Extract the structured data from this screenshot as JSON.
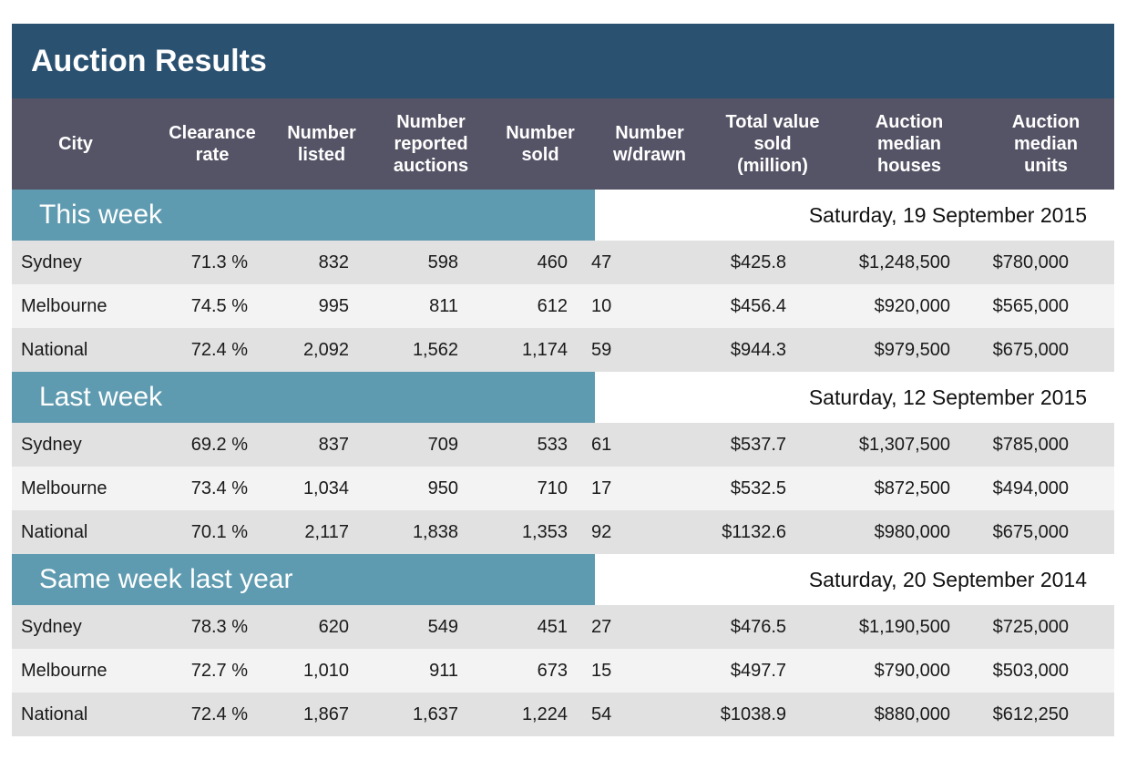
{
  "title": "Auction Results",
  "headers": [
    "City",
    "Clearance\nrate",
    "Number\nlisted",
    "Number\nreported\nauctions",
    "Number\nsold",
    "Number\nw/drawn",
    "Total value\nsold\n(million)",
    "Auction\nmedian\nhouses",
    "Auction\nmedian\nunits"
  ],
  "sections": [
    {
      "label": "This week",
      "date": "Saturday, 19 September 2015",
      "rows": [
        [
          "Sydney",
          "71.3 %",
          "832",
          "598",
          "460",
          "47",
          "$425.8",
          "$1,248,500",
          "$780,000"
        ],
        [
          "Melbourne",
          "74.5 %",
          "995",
          "811",
          "612",
          "10",
          "$456.4",
          "$920,000",
          "$565,000"
        ],
        [
          "National",
          "72.4 %",
          "2,092",
          "1,562",
          "1,174",
          "59",
          "$944.3",
          "$979,500",
          "$675,000"
        ]
      ]
    },
    {
      "label": "Last week",
      "date": "Saturday, 12 September 2015",
      "rows": [
        [
          "Sydney",
          "69.2 %",
          "837",
          "709",
          "533",
          "61",
          "$537.7",
          "$1,307,500",
          "$785,000"
        ],
        [
          "Melbourne",
          "73.4 %",
          "1,034",
          "950",
          "710",
          "17",
          "$532.5",
          "$872,500",
          "$494,000"
        ],
        [
          "National",
          "70.1 %",
          "2,117",
          "1,838",
          "1,353",
          "92",
          "$1132.6",
          "$980,000",
          "$675,000"
        ]
      ]
    },
    {
      "label": "Same week last year",
      "date": "Saturday, 20 September 2014",
      "rows": [
        [
          "Sydney",
          "78.3 %",
          "620",
          "549",
          "451",
          "27",
          "$476.5",
          "$1,190,500",
          "$725,000"
        ],
        [
          "Melbourne",
          "72.7 %",
          "1,010",
          "911",
          "673",
          "15",
          "$497.7",
          "$790,000",
          "$503,000"
        ],
        [
          "National",
          "72.4 %",
          "1,867",
          "1,637",
          "1,224",
          "54",
          "$1038.9",
          "$880,000",
          "$612,250"
        ]
      ]
    }
  ],
  "colors": {
    "title_bg": "#2b5170",
    "header_bg": "#555466",
    "section_bg": "#5f9bb0",
    "row_odd": "#e1e1e1",
    "row_even": "#f3f3f3"
  }
}
